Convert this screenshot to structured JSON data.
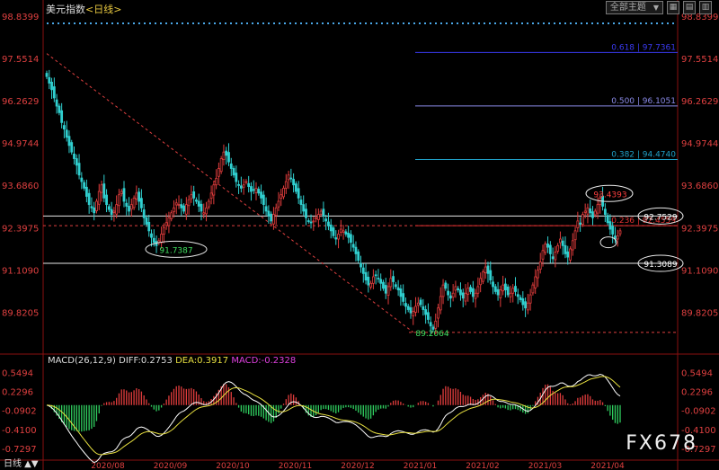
{
  "header": {
    "title": "美元指数",
    "timeframe": "<日线>",
    "dropdown_label": "全部主题",
    "dropdown_arrow": "▼"
  },
  "macd_legend": {
    "params": "MACD(26,12,9)",
    "diff": "DIFF:0.2753",
    "dea": "DEA:0.3917",
    "macd": "MACD:-0.2328"
  },
  "watermark": "FX678",
  "bottom_label": "日线",
  "chart_data": {
    "type": "candlestick",
    "price_axis_ticks": [
      "98.8399",
      "97.5514",
      "96.2629",
      "94.9744",
      "93.6860",
      "92.3975",
      "91.1090",
      "89.8205"
    ],
    "macd_axis_ticks": [
      "0.5494",
      "0.2296",
      "-0.0902",
      "-0.4100",
      "-0.7297"
    ],
    "x_ticks": [
      "2020/08",
      "2020/09",
      "2020/10",
      "2020/11",
      "2020/12",
      "2021/01",
      "2021/02",
      "2021/03",
      "2021/04"
    ],
    "price_range": [
      88.6,
      98.84
    ],
    "macd_range": [
      -0.9,
      0.65
    ],
    "fib_levels": [
      {
        "ratio": "0.618",
        "value": 97.7361,
        "label": "0.618 | 97.7361",
        "color": "#3a3af0"
      },
      {
        "ratio": "0.500",
        "value": 96.1051,
        "label": "0.500 | 96.1051",
        "color": "#8a8ae8"
      },
      {
        "ratio": "0.382",
        "value": 94.474,
        "label": "0.382 | 94.4740",
        "color": "#20a0c8"
      },
      {
        "ratio": "0.236",
        "value": 92.4559,
        "label": "0.236 | 92.4559",
        "color": "#e03030"
      }
    ],
    "annotations": [
      {
        "label": "93.4393",
        "value": 93.4393,
        "color": "#ff4040"
      },
      {
        "label": "92.7529",
        "value": 92.7529,
        "color": "#ffffff"
      },
      {
        "label": "91.3089",
        "value": 91.3089,
        "color": "#ffffff"
      },
      {
        "label": "91.7387",
        "value": 91.7387,
        "color": "#40e060"
      },
      {
        "label": "89.2064",
        "value": 89.2064,
        "color": "#40e060"
      }
    ],
    "horizontal_levels": [
      92.7529,
      91.3089
    ],
    "closes": [
      97.0,
      96.8,
      96.6,
      96.35,
      96.1,
      95.9,
      95.6,
      95.4,
      95.15,
      94.9,
      94.7,
      94.5,
      94.3,
      94.0,
      93.8,
      93.6,
      93.35,
      93.1,
      93.0,
      92.85,
      93.2,
      93.5,
      93.7,
      93.3,
      93.1,
      92.95,
      92.8,
      92.9,
      93.1,
      93.4,
      93.5,
      93.2,
      93.05,
      92.9,
      93.1,
      93.3,
      93.45,
      93.2,
      93.0,
      92.7,
      92.5,
      92.3,
      92.1,
      91.95,
      91.85,
      92.0,
      92.2,
      92.4,
      92.55,
      92.7,
      92.85,
      93.0,
      93.15,
      93.1,
      93.0,
      92.9,
      93.1,
      93.25,
      93.4,
      93.3,
      93.2,
      93.05,
      92.9,
      92.85,
      93.0,
      93.2,
      93.45,
      93.7,
      93.9,
      94.2,
      94.5,
      94.7,
      94.6,
      94.4,
      94.2,
      94.0,
      93.8,
      93.7,
      93.6,
      93.7,
      93.8,
      93.65,
      93.5,
      93.55,
      93.6,
      93.45,
      93.3,
      93.1,
      92.9,
      92.75,
      92.6,
      92.8,
      93.0,
      93.2,
      93.4,
      93.6,
      93.8,
      94.0,
      93.9,
      93.7,
      93.5,
      93.3,
      93.1,
      92.9,
      92.7,
      92.6,
      92.55,
      92.6,
      92.7,
      92.8,
      92.9,
      92.75,
      92.6,
      92.45,
      92.3,
      92.15,
      92.05,
      92.2,
      92.35,
      92.3,
      92.2,
      92.1,
      91.95,
      91.8,
      91.6,
      91.4,
      91.2,
      91.0,
      90.8,
      90.65,
      90.7,
      90.9,
      90.95,
      90.85,
      90.7,
      90.55,
      90.4,
      90.6,
      90.85,
      90.75,
      90.6,
      90.5,
      90.3,
      90.15,
      90.0,
      89.9,
      89.8,
      89.85,
      90.0,
      90.1,
      90.05,
      89.9,
      89.75,
      89.6,
      89.4,
      89.3,
      89.55,
      89.95,
      90.3,
      90.65,
      90.55,
      90.35,
      90.25,
      90.4,
      90.6,
      90.5,
      90.35,
      90.25,
      90.4,
      90.55,
      90.45,
      90.3,
      90.4,
      90.6,
      90.85,
      91.05,
      91.2,
      91.0,
      90.8,
      90.6,
      90.45,
      90.35,
      90.5,
      90.65,
      90.5,
      90.35,
      90.4,
      90.55,
      90.45,
      90.3,
      90.2,
      90.05,
      89.95,
      90.1,
      90.35,
      90.65,
      90.9,
      91.1,
      91.35,
      91.7,
      91.9,
      91.8,
      91.6,
      91.45,
      91.65,
      91.85,
      92.05,
      91.85,
      91.6,
      91.5,
      91.75,
      92.0,
      92.3,
      92.6,
      92.5,
      92.8,
      92.9,
      93.0,
      92.85,
      92.7,
      92.9,
      93.1,
      93.3,
      93.05,
      92.8,
      92.55,
      92.35,
      92.2,
      92.05,
      92.15,
      92.3
    ]
  }
}
